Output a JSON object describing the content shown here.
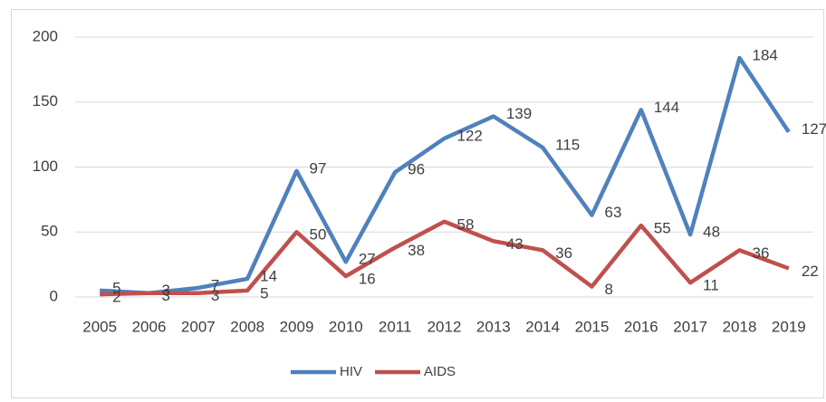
{
  "chart_data": {
    "type": "line",
    "categories": [
      "2005",
      "2006",
      "2007",
      "2008",
      "2009",
      "2010",
      "2011",
      "2012",
      "2013",
      "2014",
      "2015",
      "2016",
      "2017",
      "2018",
      "2019"
    ],
    "series": [
      {
        "name": "HIV",
        "color": "#4f81bd",
        "values": [
          5,
          3,
          7,
          14,
          97,
          27,
          96,
          122,
          139,
          115,
          63,
          144,
          48,
          184,
          127
        ]
      },
      {
        "name": "AIDS",
        "color": "#c0504d",
        "values": [
          2,
          3,
          3,
          5,
          50,
          16,
          38,
          58,
          43,
          36,
          8,
          55,
          11,
          36,
          22
        ]
      }
    ],
    "ylim": [
      0,
      200
    ],
    "yticks": [
      0,
      50,
      100,
      150,
      200
    ],
    "grid": true,
    "legend": "bottom"
  }
}
